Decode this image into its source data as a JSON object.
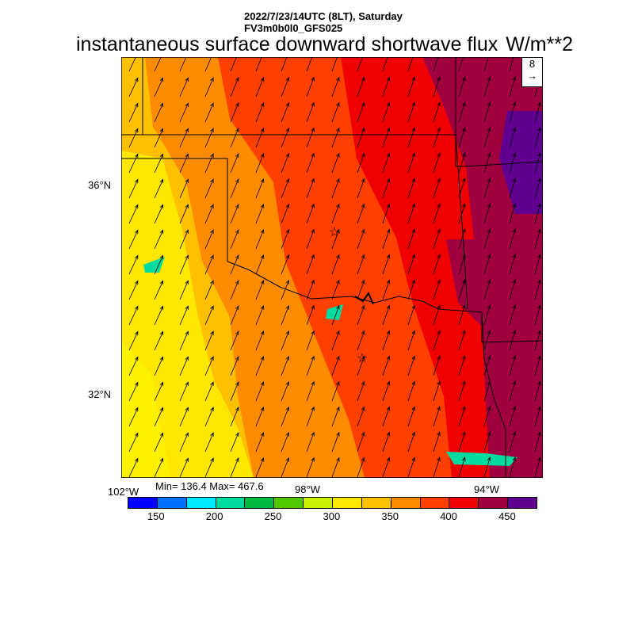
{
  "header": {
    "line1": "2022/7/23/14UTC (8LT), Saturday",
    "line2": "FV3m0b0l0_GFS025",
    "title": "instantaneous surface downward shortwave flux",
    "units": "W/m**2"
  },
  "map": {
    "lat_labels": [
      "36°N",
      "32°N"
    ],
    "lon_labels": [
      "102°W",
      "98°W",
      "94°W"
    ],
    "stats": "Min= 136.4 Max= 467.6",
    "vector_ref": "8",
    "markers": [
      "star",
      "star"
    ]
  },
  "colorbar": {
    "labels": [
      "150",
      "200",
      "250",
      "300",
      "350",
      "400",
      "450"
    ],
    "colors": [
      "#0000ff",
      "#0070ff",
      "#00e8ff",
      "#00dca0",
      "#00b840",
      "#50c800",
      "#c8f000",
      "#ffe800",
      "#ffc000",
      "#ff8c00",
      "#ff4000",
      "#f00000",
      "#a00040",
      "#600090"
    ]
  }
}
